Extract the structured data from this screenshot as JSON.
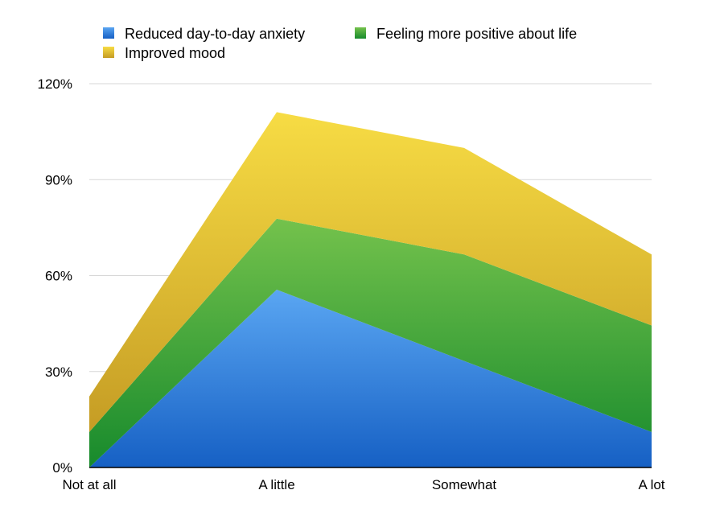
{
  "chart_data": {
    "type": "area",
    "stacked": true,
    "categories": [
      "Not at all",
      "A little",
      "Somewhat",
      "A lot"
    ],
    "series": [
      {
        "name": "Reduced day-to-day anxiety",
        "values": [
          0,
          55.6,
          33.3,
          11.1
        ],
        "color_top": "#5aa6f2",
        "color_bottom": "#1660c4"
      },
      {
        "name": "Feeling more positive about life",
        "values": [
          11.1,
          22.2,
          33.3,
          33.3
        ],
        "color_top": "#74c24c",
        "color_bottom": "#178a2c"
      },
      {
        "name": "Improved mood",
        "values": [
          11.1,
          33.3,
          33.3,
          22.2
        ],
        "color_top": "#f7dc44",
        "color_bottom": "#c59c24"
      }
    ],
    "ylim": [
      0,
      120
    ],
    "yticks": [
      0,
      30,
      60,
      90,
      120
    ],
    "ytick_labels": [
      "0%",
      "30%",
      "60%",
      "90%",
      "120%"
    ],
    "grid": true,
    "legend_position": "top-left",
    "title": "",
    "xlabel": "",
    "ylabel": ""
  }
}
